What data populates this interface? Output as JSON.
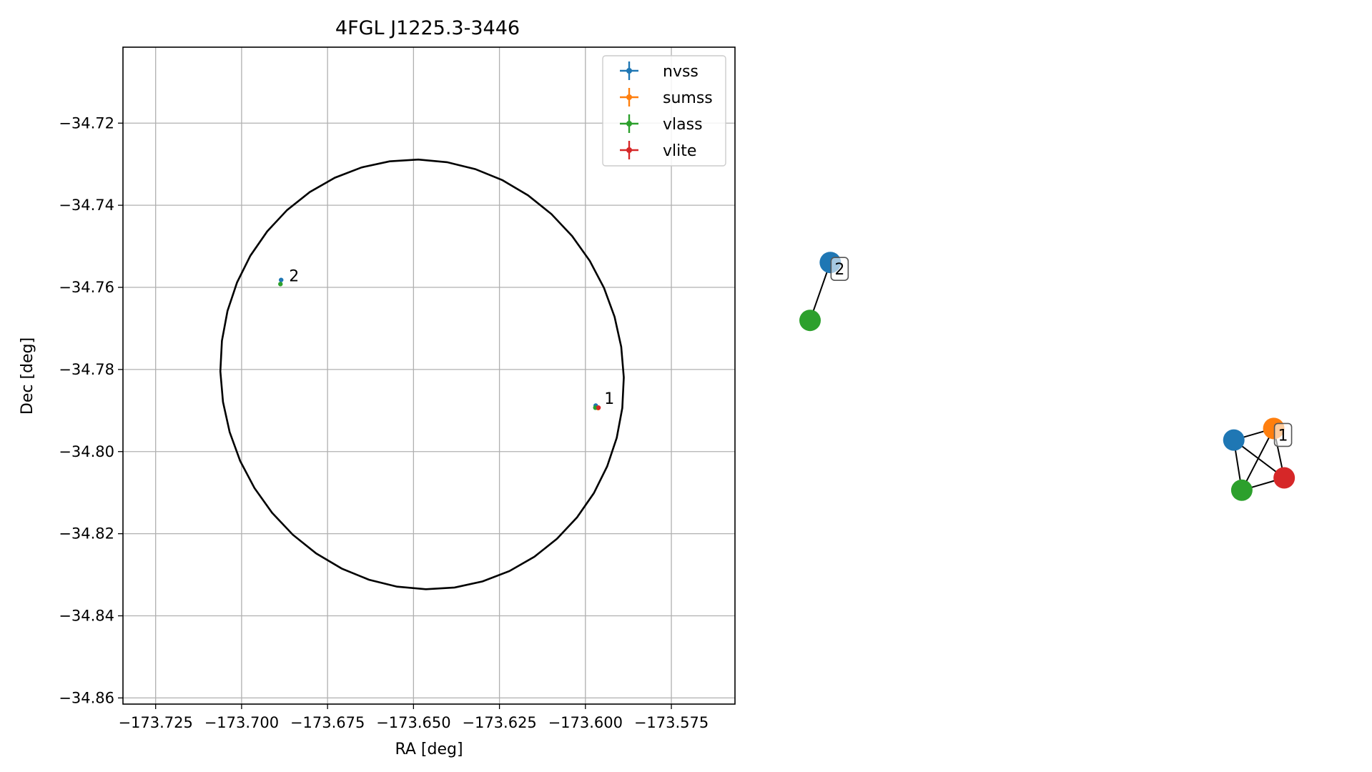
{
  "colors": {
    "nvss": "#1f77b4",
    "sumss": "#ff7f0e",
    "vlass": "#2ca02c",
    "vlite": "#d62728",
    "ellipse": "#000000",
    "grid": "#b0b0b0"
  },
  "chart_data": [
    {
      "type": "scatter",
      "title": "4FGL J1225.3-3446",
      "xlabel": "RA [deg]",
      "ylabel": "Dec [deg]",
      "xlim": [
        -173.7345,
        -173.5565
      ],
      "ylim": [
        -34.8615,
        -34.7015
      ],
      "xticks": [
        -173.725,
        -173.7,
        -173.675,
        -173.65,
        -173.625,
        -173.6,
        -173.575
      ],
      "xtick_labels": [
        "−173.725",
        "−173.700",
        "−173.675",
        "−173.650",
        "−173.625",
        "−173.600",
        "−173.575"
      ],
      "yticks": [
        -34.72,
        -34.74,
        -34.76,
        -34.78,
        -34.8,
        -34.82,
        -34.84,
        -34.86
      ],
      "ytick_labels": [
        "−34.72",
        "−34.74",
        "−34.76",
        "−34.78",
        "−34.80",
        "−34.82",
        "−34.84",
        "−34.86"
      ],
      "grid": true,
      "legend_position": "top-right",
      "ellipse": {
        "center": [
          -173.6475,
          -34.7812
        ],
        "ra_semi_axis": 0.0588,
        "dec_semi_axis": 0.0522,
        "angle_deg": -8
      },
      "series": [
        {
          "name": "nvss",
          "points": [
            {
              "x": -173.6885,
              "y": -34.7582
            },
            {
              "x": -173.597,
              "y": -34.7888
            }
          ]
        },
        {
          "name": "sumss",
          "points": [
            {
              "x": -173.5963,
              "y": -34.7894
            }
          ]
        },
        {
          "name": "vlass",
          "points": [
            {
              "x": -173.6887,
              "y": -34.7592
            },
            {
              "x": -173.5971,
              "y": -34.7893
            }
          ]
        },
        {
          "name": "vlite",
          "points": [
            {
              "x": -173.5962,
              "y": -34.7893
            }
          ]
        }
      ],
      "annotations": [
        {
          "text": "2",
          "x": -173.6862,
          "y": -34.7571
        },
        {
          "text": "1",
          "x": -173.5945,
          "y": -34.787
        }
      ]
    },
    {
      "type": "network",
      "nodes": [
        {
          "id": "g2-nvss",
          "catalog": "nvss",
          "x": 0.118,
          "y": 0.66
        },
        {
          "id": "g2-vlass",
          "catalog": "vlass",
          "x": 0.085,
          "y": 0.585
        },
        {
          "id": "g1-nvss",
          "catalog": "nvss",
          "x": 0.775,
          "y": 0.43
        },
        {
          "id": "g1-sumss",
          "catalog": "sumss",
          "x": 0.84,
          "y": 0.445
        },
        {
          "id": "g1-vlass",
          "catalog": "vlass",
          "x": 0.788,
          "y": 0.365
        },
        {
          "id": "g1-vlite",
          "catalog": "vlite",
          "x": 0.857,
          "y": 0.381
        }
      ],
      "edges": [
        [
          "g2-nvss",
          "g2-vlass"
        ],
        [
          "g1-nvss",
          "g1-sumss"
        ],
        [
          "g1-nvss",
          "g1-vlass"
        ],
        [
          "g1-nvss",
          "g1-vlite"
        ],
        [
          "g1-sumss",
          "g1-vlass"
        ],
        [
          "g1-sumss",
          "g1-vlite"
        ],
        [
          "g1-vlass",
          "g1-vlite"
        ]
      ],
      "labels": [
        {
          "text": "2",
          "near": "g2-nvss"
        },
        {
          "text": "1",
          "near": "g1-sumss"
        }
      ]
    }
  ]
}
